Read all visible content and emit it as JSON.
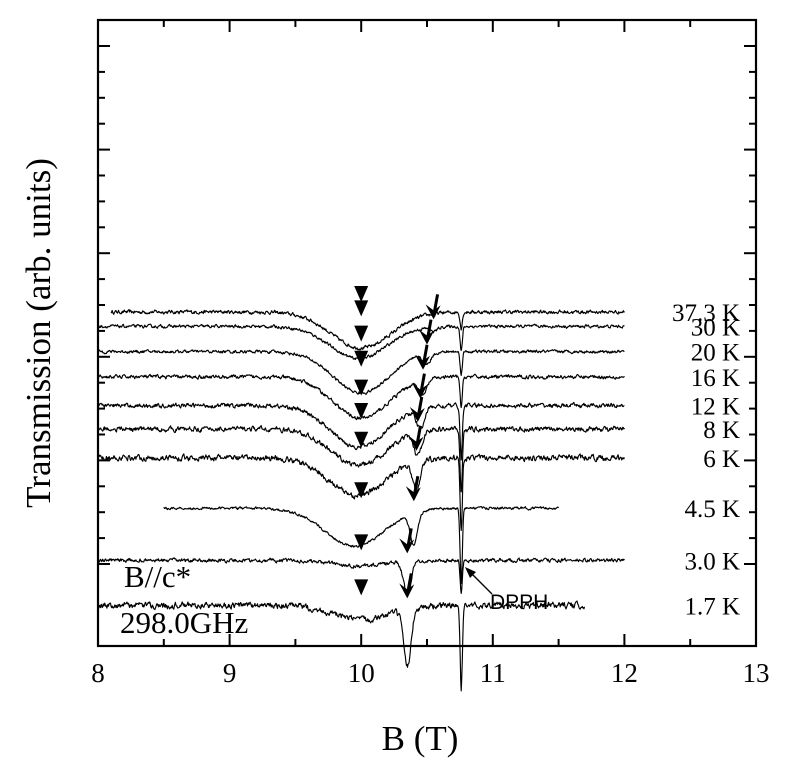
{
  "chart_data": {
    "type": "line",
    "title": "",
    "xlabel": "B (T)",
    "ylabel": "Transmission (arb. units)",
    "xlim": [
      8,
      13
    ],
    "x_ticks": [
      "8",
      "9",
      "10",
      "11",
      "12",
      "13"
    ],
    "y_ticks_shown": false,
    "annotations": {
      "orientation": "B//c*",
      "frequency": "298.0GHz",
      "reference": "DPPH"
    },
    "dpph_field": 10.76,
    "series": [
      {
        "name": "37.3 K",
        "label": "37.3 K",
        "offset": 9.0,
        "x_start": 8.1,
        "x_end": 12.0,
        "broad_center": 10.0,
        "broad_width": 0.32,
        "broad_depth": 1.0,
        "narrow_center": null,
        "narrow_depth": 0,
        "dpph_depth": 0.45,
        "triangle_marker_B": 10.0,
        "arrow_marker_B": null,
        "noise": 0.06
      },
      {
        "name": "30 K",
        "label": "30 K",
        "offset": 8.6,
        "x_start": 8.0,
        "x_end": 12.0,
        "broad_center": 9.98,
        "broad_width": 0.3,
        "broad_depth": 0.9,
        "narrow_center": 10.55,
        "narrow_depth": 0.12,
        "dpph_depth": 0.7,
        "triangle_marker_B": 10.0,
        "arrow_marker_B": 10.55,
        "noise": 0.05
      },
      {
        "name": "20 K",
        "label": "20 K",
        "offset": 7.9,
        "x_start": 8.0,
        "x_end": 12.0,
        "broad_center": 10.0,
        "broad_width": 0.3,
        "broad_depth": 1.15,
        "narrow_center": 10.5,
        "narrow_depth": 0.28,
        "dpph_depth": 0.6,
        "triangle_marker_B": 10.0,
        "arrow_marker_B": 10.5,
        "noise": 0.05
      },
      {
        "name": "16 K",
        "label": "16 K",
        "offset": 7.2,
        "x_start": 8.0,
        "x_end": 12.0,
        "broad_center": 10.0,
        "broad_width": 0.3,
        "broad_depth": 1.15,
        "narrow_center": 10.47,
        "narrow_depth": 0.42,
        "dpph_depth": 0.85,
        "triangle_marker_B": 10.0,
        "arrow_marker_B": 10.47,
        "noise": 0.06
      },
      {
        "name": "12 K",
        "label": "12 K",
        "offset": 6.4,
        "x_start": 8.0,
        "x_end": 12.0,
        "broad_center": 9.98,
        "broad_width": 0.3,
        "broad_depth": 1.15,
        "narrow_center": 10.45,
        "narrow_depth": 0.55,
        "dpph_depth": 1.5,
        "triangle_marker_B": 10.0,
        "arrow_marker_B": 10.45,
        "noise": 0.07
      },
      {
        "name": "8 K",
        "label": "8 K",
        "offset": 5.75,
        "x_start": 8.0,
        "x_end": 12.0,
        "broad_center": 9.98,
        "broad_width": 0.3,
        "broad_depth": 1.0,
        "narrow_center": 10.43,
        "narrow_depth": 0.65,
        "dpph_depth": 1.8,
        "triangle_marker_B": 10.0,
        "arrow_marker_B": 10.43,
        "noise": 0.08
      },
      {
        "name": "6 K",
        "label": "6 K",
        "offset": 4.95,
        "x_start": 8.0,
        "x_end": 12.0,
        "broad_center": 9.97,
        "broad_width": 0.3,
        "broad_depth": 1.05,
        "narrow_center": 10.42,
        "narrow_depth": 0.8,
        "dpph_depth": 2.1,
        "triangle_marker_B": 10.0,
        "arrow_marker_B": 10.42,
        "noise": 0.09
      },
      {
        "name": "4.5 K",
        "label": "4.5 K",
        "offset": 3.55,
        "x_start": 8.5,
        "x_end": 11.5,
        "broad_center": 9.95,
        "broad_width": 0.32,
        "broad_depth": 1.05,
        "narrow_center": 10.4,
        "narrow_depth": 0.85,
        "dpph_depth": 2.1,
        "triangle_marker_B": 10.0,
        "arrow_marker_B": 10.4,
        "noise": 0.04
      },
      {
        "name": "3.0 K",
        "label": "3.0 K",
        "offset": 2.1,
        "x_start": 8.0,
        "x_end": 12.0,
        "broad_center": 10.0,
        "broad_width": 0.28,
        "broad_depth": 0.15,
        "narrow_center": 10.35,
        "narrow_depth": 0.9,
        "dpph_depth": 0.9,
        "triangle_marker_B": 10.0,
        "arrow_marker_B": 10.35,
        "noise": 0.06
      },
      {
        "name": "1.7 K",
        "label": "1.7 K",
        "offset": 0.85,
        "x_start": 8.0,
        "x_end": 11.7,
        "broad_center": 10.0,
        "broad_width": 0.3,
        "broad_depth": 0.4,
        "narrow_center": 10.35,
        "narrow_depth": 1.6,
        "dpph_depth": 2.3,
        "triangle_marker_B": 10.0,
        "arrow_marker_B": 10.35,
        "noise": 0.1
      }
    ]
  }
}
